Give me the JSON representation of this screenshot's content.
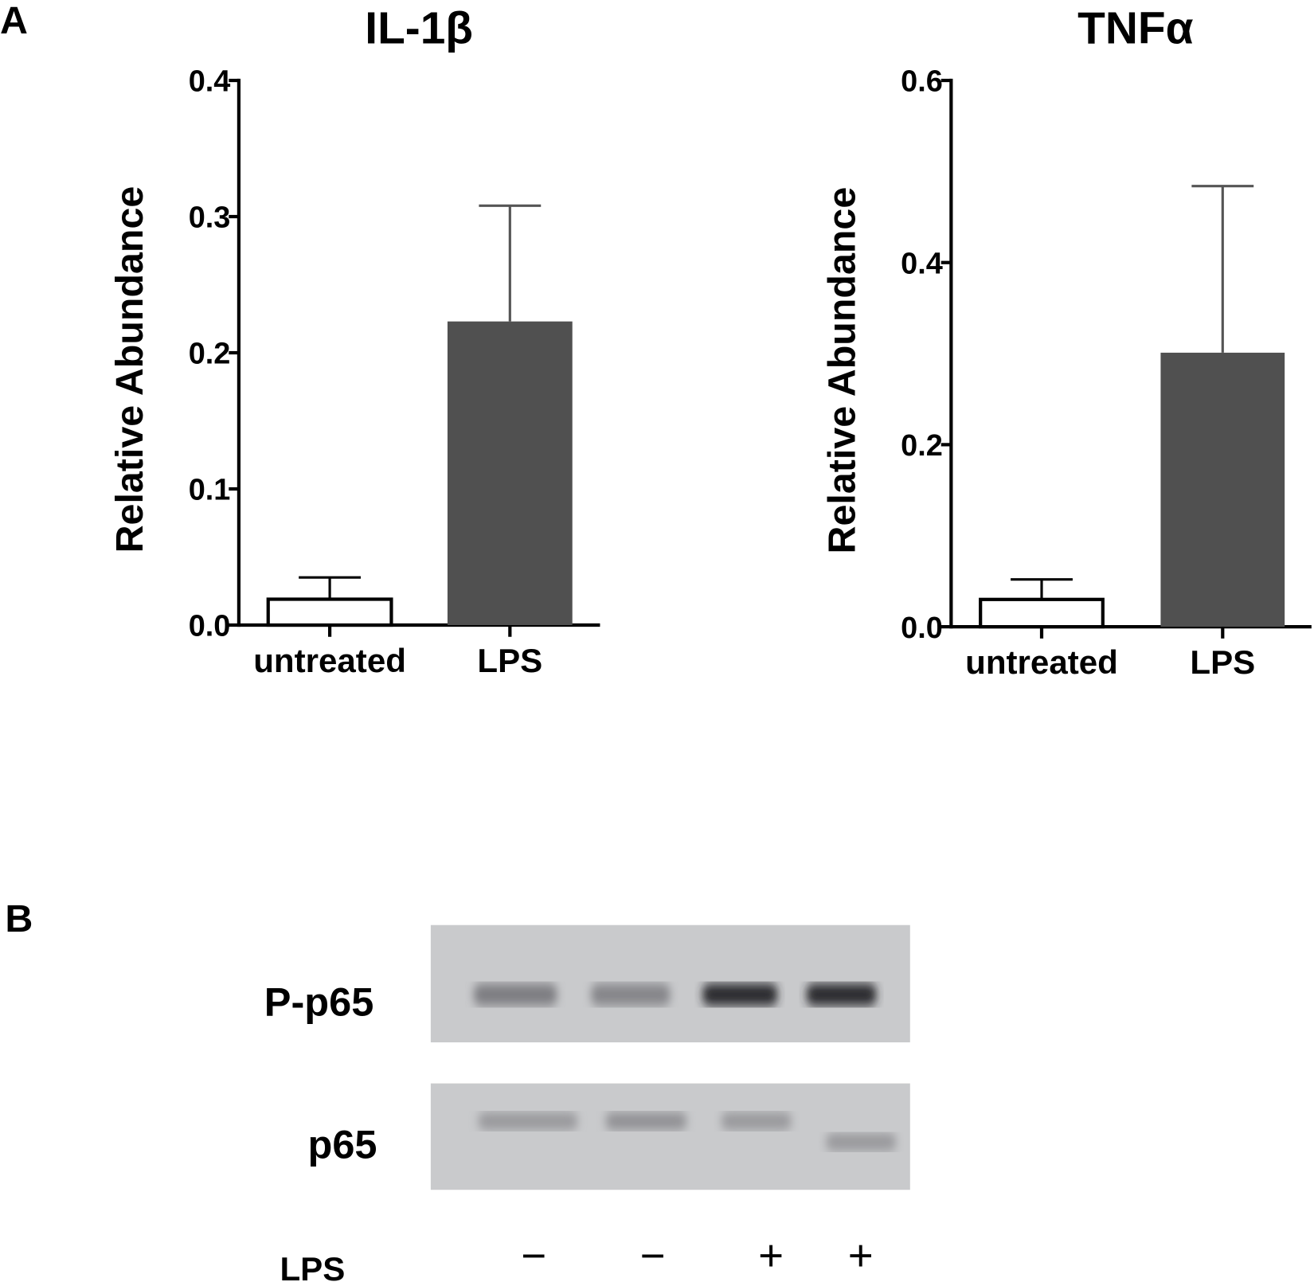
{
  "panel_labels": {
    "a": "A",
    "b": "B"
  },
  "chart_data": [
    {
      "type": "bar",
      "title": "IL-1β",
      "ylabel": "Relative Abundance",
      "xlabel": "",
      "categories": [
        "untreated",
        "LPS"
      ],
      "values": [
        0.019,
        0.223
      ],
      "error_upper": [
        0.035,
        0.308
      ],
      "bar_colors": [
        "#ffffff",
        "#505050"
      ],
      "ylim": [
        0,
        0.4
      ],
      "yticks": [
        "0.0",
        "0.1",
        "0.2",
        "0.3",
        "0.4"
      ],
      "grid": false
    },
    {
      "type": "bar",
      "title": "TNFα",
      "ylabel": "Relative Abundance",
      "xlabel": "",
      "categories": [
        "untreated",
        "LPS"
      ],
      "values": [
        0.03,
        0.301
      ],
      "error_upper": [
        0.052,
        0.484
      ],
      "bar_colors": [
        "#ffffff",
        "#505050"
      ],
      "ylim": [
        0,
        0.6
      ],
      "yticks": [
        "0.0",
        "0.2",
        "0.4",
        "0.6"
      ],
      "grid": false
    }
  ],
  "blot": {
    "rows": [
      {
        "label": "P-p65",
        "band_intensity": [
          0.45,
          0.4,
          0.95,
          0.95
        ]
      },
      {
        "label": "p65",
        "band_intensity": [
          0.3,
          0.35,
          0.3,
          0.3
        ]
      }
    ],
    "treatment_label": "LPS",
    "lanes": [
      "−",
      "−",
      "+",
      "+"
    ]
  }
}
